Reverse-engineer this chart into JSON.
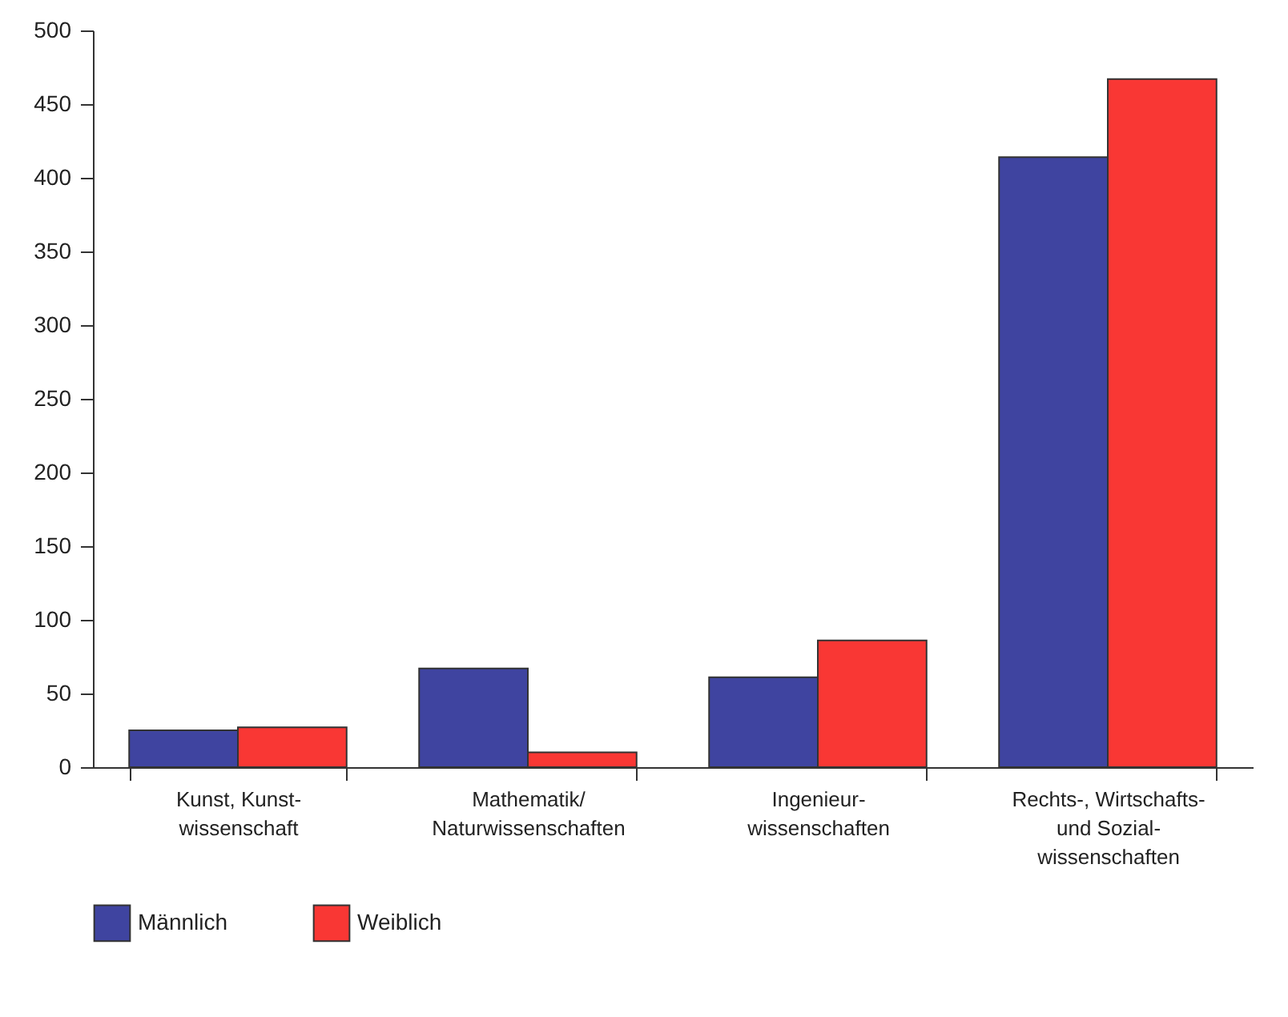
{
  "chart_data": {
    "type": "bar",
    "categories": [
      "Kunst, Kunst-\nwissenschaft",
      "Mathematik/\nNaturwissenschaften",
      "Ingenieur-\nwissenschaften",
      "Rechts-, Wirtschafts-\nund Sozial-\nwissenschaften"
    ],
    "series": [
      {
        "name": "Männlich",
        "color": "#3f44a0",
        "values": [
          25,
          67,
          61,
          414
        ]
      },
      {
        "name": "Weiblich",
        "color": "#f93734",
        "values": [
          27,
          10,
          86,
          467
        ]
      }
    ],
    "ylim": [
      0,
      500
    ],
    "yticks": [
      0,
      50,
      100,
      150,
      200,
      250,
      300,
      350,
      400,
      450,
      500
    ],
    "grid": false,
    "legend": "bottom left"
  }
}
